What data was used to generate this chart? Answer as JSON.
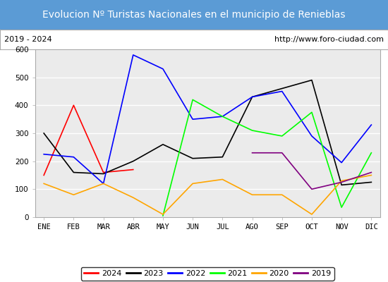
{
  "title": "Evolucion Nº Turistas Nacionales en el municipio de Renieblas",
  "subtitle_left": "2019 - 2024",
  "subtitle_right": "http://www.foro-ciudad.com",
  "months": [
    "ENE",
    "FEB",
    "MAR",
    "ABR",
    "MAY",
    "JUN",
    "JUL",
    "AGO",
    "SEP",
    "OCT",
    "NOV",
    "DIC"
  ],
  "ylim": [
    0,
    600
  ],
  "yticks": [
    0,
    100,
    200,
    300,
    400,
    500,
    600
  ],
  "series": {
    "2024": {
      "color": "red",
      "data": [
        150,
        400,
        160,
        170,
        null,
        null,
        null,
        null,
        null,
        null,
        null,
        null
      ]
    },
    "2023": {
      "color": "black",
      "data": [
        300,
        160,
        155,
        200,
        260,
        210,
        215,
        430,
        460,
        490,
        115,
        125
      ]
    },
    "2022": {
      "color": "blue",
      "data": [
        225,
        215,
        120,
        580,
        530,
        350,
        360,
        430,
        450,
        290,
        195,
        330
      ]
    },
    "2021": {
      "color": "lime",
      "data": [
        null,
        null,
        null,
        null,
        5,
        420,
        360,
        310,
        290,
        375,
        35,
        230
      ]
    },
    "2020": {
      "color": "orange",
      "data": [
        120,
        80,
        120,
        70,
        10,
        120,
        135,
        80,
        80,
        10,
        130,
        150
      ]
    },
    "2019": {
      "color": "purple",
      "data": [
        null,
        null,
        null,
        null,
        null,
        null,
        null,
        230,
        230,
        100,
        125,
        160
      ]
    }
  },
  "title_bg_color": "#5b9bd5",
  "title_color": "white",
  "plot_bg_color": "#ebebeb",
  "grid_color": "white",
  "title_fontsize": 10,
  "subtitle_fontsize": 8,
  "legend_fontsize": 8,
  "axis_fontsize": 7.5
}
